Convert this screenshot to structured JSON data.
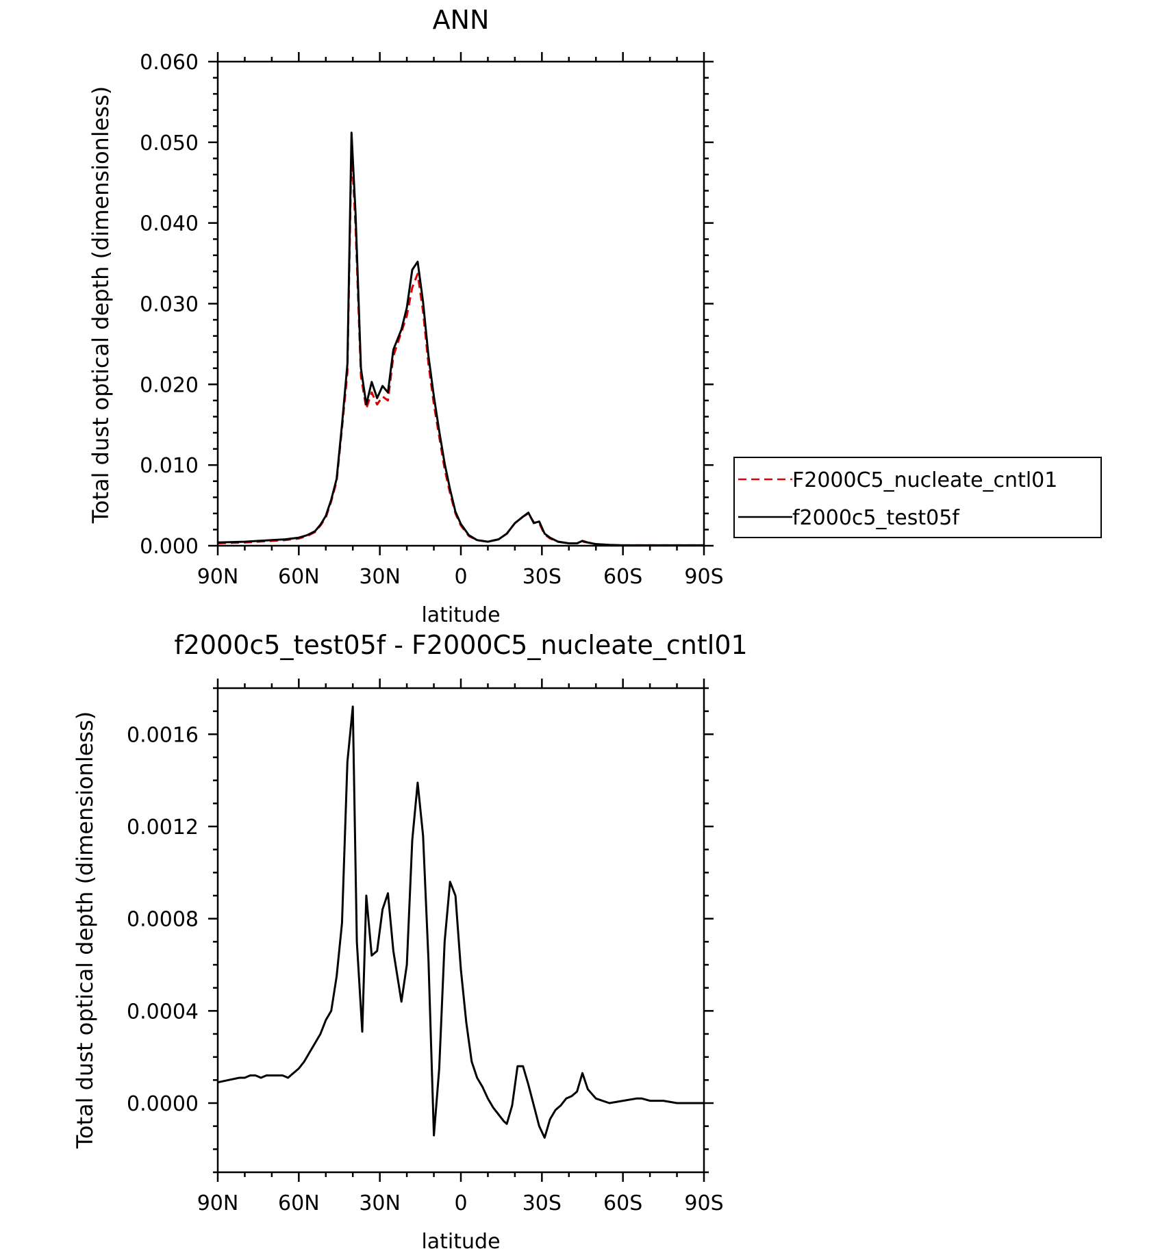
{
  "chart_data": [
    {
      "type": "line",
      "title": "ANN",
      "xlabel": "latitude",
      "ylabel": "Total dust optical depth (dimensionless)",
      "xlim": [
        90,
        -90
      ],
      "ylim": [
        0,
        0.06
      ],
      "x_ticks": [
        90,
        60,
        30,
        0,
        -30,
        -60,
        -90
      ],
      "x_tick_labels": [
        "90N",
        "60N",
        "30N",
        "0",
        "30S",
        "60S",
        "90S"
      ],
      "y_ticks": [
        0,
        0.01,
        0.02,
        0.03,
        0.04,
        0.05,
        0.06
      ],
      "y_tick_labels": [
        "0.000",
        "0.010",
        "0.020",
        "0.030",
        "0.040",
        "0.050",
        "0.060"
      ],
      "grid": false,
      "legend_position": "right",
      "series": [
        {
          "name": "F2000C5_nucleate_cntl01",
          "color": "#e00000",
          "dash": "dashed",
          "x": [
            90,
            80,
            70,
            65,
            60,
            57,
            54,
            52,
            50,
            48,
            46,
            44,
            42,
            40.5,
            39,
            37,
            35,
            33,
            31,
            29,
            27,
            25,
            22,
            20,
            18,
            16,
            14,
            12,
            10,
            8,
            6,
            4,
            2,
            0,
            -3,
            -6,
            -10,
            -14,
            -17,
            -20,
            -23,
            -25,
            -27,
            -29,
            -31,
            -33,
            -36,
            -40,
            -43,
            -45,
            -47,
            -50,
            -55,
            -60,
            -70,
            -80,
            -90
          ],
          "y": [
            0.0003,
            0.0004,
            0.0006,
            0.0007,
            0.0009,
            0.0012,
            0.0017,
            0.0025,
            0.0035,
            0.0055,
            0.008,
            0.0145,
            0.0215,
            0.0495,
            0.0395,
            0.021,
            0.017,
            0.019,
            0.0175,
            0.0185,
            0.018,
            0.0235,
            0.0265,
            0.0285,
            0.032,
            0.0337,
            0.029,
            0.0225,
            0.0175,
            0.0135,
            0.0095,
            0.0065,
            0.004,
            0.0025,
            0.0012,
            0.0007,
            0.0005,
            0.0008,
            0.0015,
            0.0028,
            0.0036,
            0.004,
            0.0029,
            0.0028,
            0.0014,
            0.0009,
            0.0005,
            0.0003,
            0.0003,
            0.0005,
            0.0004,
            0.0002,
            0.0001,
            5e-05,
            5e-05,
            5e-05,
            5e-05
          ]
        },
        {
          "name": "f2000c5_test05f",
          "color": "#000000",
          "dash": "solid",
          "x": [
            90,
            80,
            70,
            65,
            60,
            57,
            54,
            52,
            50,
            48,
            46,
            44,
            42,
            40.5,
            39,
            37,
            35,
            33,
            31,
            29,
            27,
            25,
            22,
            20,
            18,
            16,
            14,
            12,
            10,
            8,
            6,
            4,
            2,
            0,
            -3,
            -6,
            -10,
            -14,
            -17,
            -20,
            -23,
            -25,
            -27,
            -29,
            -31,
            -33,
            -36,
            -40,
            -43,
            -45,
            -47,
            -50,
            -55,
            -60,
            -70,
            -80,
            -90
          ],
          "y": [
            0.0004,
            0.0005,
            0.0007,
            0.0008,
            0.001,
            0.0013,
            0.0018,
            0.0026,
            0.0037,
            0.0057,
            0.0083,
            0.015,
            0.0225,
            0.0512,
            0.0412,
            0.022,
            0.0175,
            0.0203,
            0.0183,
            0.0198,
            0.019,
            0.0243,
            0.0268,
            0.0295,
            0.0342,
            0.0352,
            0.0302,
            0.0235,
            0.0185,
            0.0142,
            0.0102,
            0.007,
            0.0042,
            0.0027,
            0.0013,
            0.0007,
            0.0005,
            0.0008,
            0.0015,
            0.0028,
            0.0036,
            0.0041,
            0.0028,
            0.003,
            0.0015,
            0.001,
            0.0005,
            0.0003,
            0.0003,
            0.0006,
            0.0004,
            0.0002,
            0.0001,
            5e-05,
            5e-05,
            5e-05,
            5e-05
          ]
        }
      ]
    },
    {
      "type": "line",
      "title": "f2000c5_test05f - F2000C5_nucleate_cntl01",
      "xlabel": "latitude",
      "ylabel": "Total dust optical depth (dimensionless)",
      "xlim": [
        90,
        -90
      ],
      "ylim": [
        -0.0003,
        0.0018
      ],
      "x_ticks": [
        90,
        60,
        30,
        0,
        -30,
        -60,
        -90
      ],
      "x_tick_labels": [
        "90N",
        "60N",
        "30N",
        "0",
        "30S",
        "60S",
        "90S"
      ],
      "y_ticks": [
        0,
        0.0004,
        0.0008,
        0.0012,
        0.0016
      ],
      "y_tick_labels": [
        "0.0000",
        "0.0004",
        "0.0008",
        "0.0012",
        "0.0016"
      ],
      "grid": false,
      "series": [
        {
          "color": "#000000",
          "dash": "solid",
          "x": [
            90,
            86,
            82,
            80,
            78,
            76,
            74,
            72,
            70,
            68,
            66,
            64,
            62,
            60,
            58,
            56,
            54,
            52,
            50,
            48,
            46,
            44,
            42,
            40,
            38.5,
            36.5,
            35,
            33,
            31,
            29,
            27,
            25,
            22,
            20,
            18,
            16,
            14,
            12,
            10,
            8,
            6,
            4,
            2,
            0,
            -2,
            -4,
            -6,
            -8,
            -10,
            -12,
            -14,
            -16,
            -17,
            -19,
            -21,
            -23,
            -25,
            -27,
            -29,
            -31,
            -33,
            -35,
            -37,
            -39,
            -41,
            -43,
            -45,
            -47,
            -50,
            -55,
            -60,
            -65,
            -67,
            -70,
            -75,
            -80,
            -85,
            -90
          ],
          "y": [
            9e-05,
            0.0001,
            0.00011,
            0.00011,
            0.00012,
            0.00012,
            0.00011,
            0.00012,
            0.00012,
            0.00012,
            0.00012,
            0.00011,
            0.00013,
            0.00015,
            0.00018,
            0.00022,
            0.00026,
            0.0003,
            0.00036,
            0.0004,
            0.00055,
            0.00078,
            0.00148,
            0.00172,
            0.0007,
            0.00031,
            0.0009,
            0.00064,
            0.00066,
            0.00084,
            0.00091,
            0.00066,
            0.00044,
            0.0006,
            0.00114,
            0.00139,
            0.00116,
            0.00062,
            -0.00014,
            0.00015,
            0.0007,
            0.00096,
            0.0009,
            0.00058,
            0.00035,
            0.00018,
            0.00011,
            7e-05,
            2e-05,
            -2e-05,
            -5e-05,
            -8e-05,
            -9e-05,
            -1e-05,
            0.00016,
            0.00016,
            8e-05,
            -1e-05,
            -0.0001,
            -0.00015,
            -7e-05,
            -3e-05,
            -1e-05,
            2e-05,
            3e-05,
            5e-05,
            0.00013,
            6e-05,
            2e-05,
            0.0,
            1e-05,
            2e-05,
            2e-05,
            1e-05,
            1e-05,
            0.0,
            0.0,
            0.0
          ]
        }
      ]
    }
  ]
}
